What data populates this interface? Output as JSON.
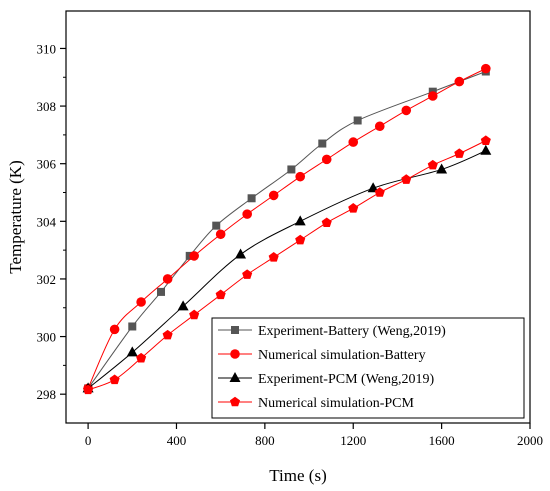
{
  "chart_data": {
    "type": "line",
    "xlabel": "Time (s)",
    "ylabel": "Temperature (K)",
    "xlim": [
      -100,
      2000
    ],
    "ylim": [
      297,
      311.3
    ],
    "xticks": [
      0,
      400,
      800,
      1200,
      1600,
      2000
    ],
    "yticks": [
      298,
      300,
      302,
      304,
      306,
      308,
      310
    ],
    "grid": false,
    "legend_position": "bottom-right",
    "series": [
      {
        "name": "Experiment-Battery (Weng,2019)",
        "marker": "square",
        "color": "#555555",
        "x": [
          0,
          200,
          330,
          460,
          580,
          740,
          920,
          1060,
          1220,
          1560,
          1800
        ],
        "y": [
          298.2,
          300.35,
          301.55,
          302.8,
          303.85,
          304.8,
          305.8,
          306.7,
          307.5,
          308.5,
          309.2
        ]
      },
      {
        "name": "Numerical simulation-Battery",
        "marker": "circle",
        "color": "#ff0000",
        "x": [
          0,
          120,
          240,
          360,
          480,
          600,
          720,
          840,
          960,
          1080,
          1200,
          1320,
          1440,
          1560,
          1680,
          1800
        ],
        "y": [
          298.2,
          300.25,
          301.2,
          302.0,
          302.8,
          303.55,
          304.25,
          304.9,
          305.55,
          306.15,
          306.75,
          307.3,
          307.85,
          308.35,
          308.85,
          309.3
        ]
      },
      {
        "name": "Experiment-PCM (Weng,2019)",
        "marker": "triangle",
        "color": "#000000",
        "x": [
          0,
          200,
          430,
          690,
          960,
          1290,
          1600,
          1800
        ],
        "y": [
          298.2,
          299.45,
          301.05,
          302.85,
          304.0,
          305.15,
          305.8,
          306.45
        ]
      },
      {
        "name": "Numerical simulation-PCM",
        "marker": "pentagon",
        "color": "#ff0000",
        "x": [
          0,
          120,
          240,
          360,
          480,
          600,
          720,
          840,
          960,
          1080,
          1200,
          1320,
          1440,
          1560,
          1680,
          1800
        ],
        "y": [
          298.15,
          298.5,
          299.25,
          300.05,
          300.75,
          301.45,
          302.15,
          302.75,
          303.35,
          303.95,
          304.45,
          305.0,
          305.45,
          305.95,
          306.35,
          306.8
        ]
      }
    ]
  }
}
